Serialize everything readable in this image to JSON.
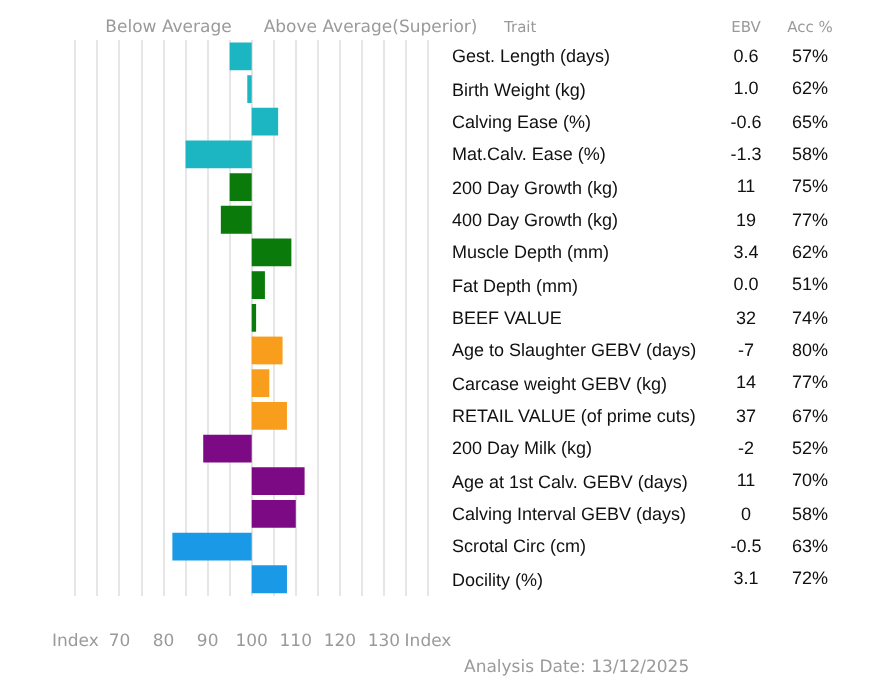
{
  "chart_data": [
    {
      "type": "bar",
      "orientation": "horizontal",
      "categories": [
        null,
        null,
        null,
        null,
        null,
        null,
        null,
        null,
        null,
        null,
        null,
        null,
        null,
        null,
        null,
        null,
        null
      ],
      "base": [
        100,
        100,
        100,
        100,
        100,
        100,
        100,
        100,
        100,
        100,
        100,
        100,
        100,
        100,
        100,
        100,
        100
      ],
      "values": [
        -5,
        -1,
        6,
        -15,
        -5,
        -7,
        9,
        3,
        1,
        7,
        4,
        8,
        -11,
        12,
        10,
        -18,
        8
      ],
      "colors": [
        "#1cb5c2",
        "#1cb5c2",
        "#1cb5c2",
        "#1cb5c2",
        "#0a7a0a",
        "#0a7a0a",
        "#0a7a0a",
        "#0a7a0a",
        "#0a7a0a",
        "#f99d1c",
        "#f99d1c",
        "#f99d1c",
        "#7d0a85",
        "#7d0a85",
        "#7d0a85",
        "#1a9ae6",
        "#1a9ae6"
      ],
      "xlim": [
        60,
        140
      ],
      "xticks": [
        {
          "value": 60,
          "label": "Index"
        },
        {
          "value": 65,
          "label": null
        },
        70,
        {
          "value": 75,
          "label": null
        },
        80,
        {
          "value": 85,
          "label": null
        },
        90,
        {
          "value": 95,
          "label": null
        },
        100,
        {
          "value": 105,
          "label": null
        },
        110,
        {
          "value": 115,
          "label": null
        },
        120,
        {
          "value": 125,
          "label": null
        },
        130,
        {
          "value": 135,
          "label": null
        },
        {
          "value": 140,
          "label": "Index"
        }
      ],
      "grid": "x",
      "legend": false,
      "annotations": [
        "Below Average",
        "Above Average(Superior)",
        "Analysis Date: 13/12/2025"
      ]
    },
    {
      "type": "heatmap",
      "ylabel": "Trait",
      "categories": [
        "EBV",
        "Acc %"
      ],
      "y_categories": [
        "Gest. Length (days)",
        "Birth Weight (kg)",
        "Calving Ease (%)",
        "Mat.Calv. Ease (%)",
        "200 Day Growth (kg)",
        "400 Day Growth (kg)",
        "Muscle Depth (mm)",
        "Fat Depth (mm)",
        "BEEF VALUE",
        "Age to Slaughter GEBV (days)",
        "Carcase weight GEBV (kg)",
        "RETAIL VALUE (of prime cuts)",
        "200 Day Milk (kg)",
        "Age at 1st Calv. GEBV (days)",
        "Calving Interval GEBV (days)",
        "Scrotal Circ (cm)",
        "Docility (%)"
      ],
      "cells": [
        [
          0.6,
          57
        ],
        [
          1.0,
          62
        ],
        [
          -0.6,
          65
        ],
        [
          -1.3,
          58
        ],
        [
          11,
          75
        ],
        [
          19,
          77
        ],
        [
          3.4,
          62
        ],
        [
          0.0,
          51
        ],
        [
          32,
          74
        ],
        [
          -7,
          80
        ],
        [
          14,
          77
        ],
        [
          37,
          67
        ],
        [
          -2,
          52
        ],
        [
          11,
          70
        ],
        [
          0,
          58
        ],
        [
          -0.5,
          63
        ],
        [
          3.1,
          72
        ]
      ],
      "cell_labels": [
        [
          "0.6",
          "57%"
        ],
        [
          "1.0",
          "62%"
        ],
        [
          "-0.6",
          "65%"
        ],
        [
          "-1.3",
          "58%"
        ],
        [
          "11",
          "75%"
        ],
        [
          "19",
          "77%"
        ],
        [
          "3.4",
          "62%"
        ],
        [
          "0.0",
          "51%"
        ],
        [
          "32",
          "74%"
        ],
        [
          "-7",
          "80%"
        ],
        [
          "14",
          "77%"
        ],
        [
          "37",
          "67%"
        ],
        [
          "-2",
          "52%"
        ],
        [
          "11",
          "70%"
        ],
        [
          "0",
          "58%"
        ],
        [
          "-0.5",
          "63%"
        ],
        [
          "3.1",
          "72%"
        ]
      ]
    }
  ]
}
